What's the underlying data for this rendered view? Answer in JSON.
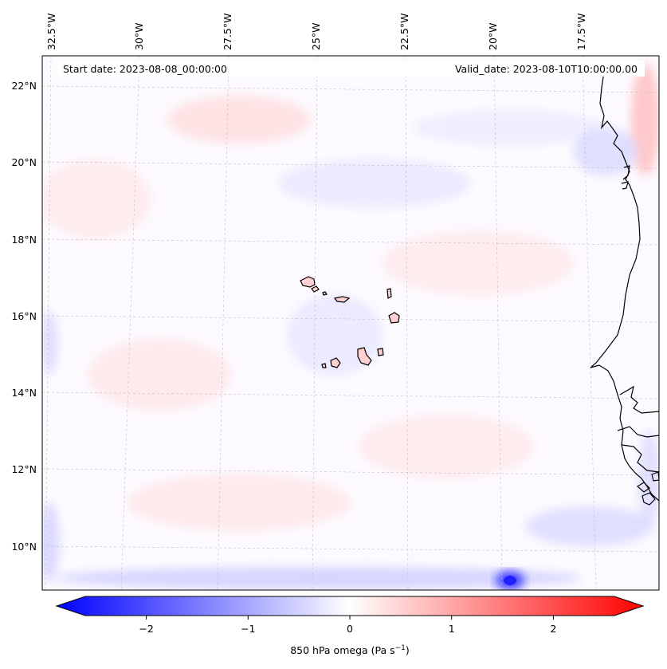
{
  "header": {
    "start_date": "Start date: 2023-08-08_00:00:00",
    "valid_date": "Valid_date: 2023-08-10T10:00:00.00"
  },
  "map": {
    "lon_labels": [
      "32.5°W",
      "30°W",
      "27.5°W",
      "25°W",
      "22.5°W",
      "20°W",
      "17.5°W"
    ],
    "lat_labels": [
      "22°N",
      "20°N",
      "18°N",
      "16°N",
      "14°N",
      "12°N",
      "10°N"
    ],
    "gridlines": true,
    "field": "850 hPa omega",
    "colormap": [
      "#0000ff",
      "#ffffff",
      "#ff0000"
    ]
  },
  "colorbar": {
    "ticks": [
      "−2",
      "−1",
      "0",
      "1",
      "2"
    ],
    "range": [
      -2.6,
      2.6
    ],
    "label_text": "850 hPa omega (Pa s",
    "label_exp": "−1",
    "label_close": ")"
  }
}
